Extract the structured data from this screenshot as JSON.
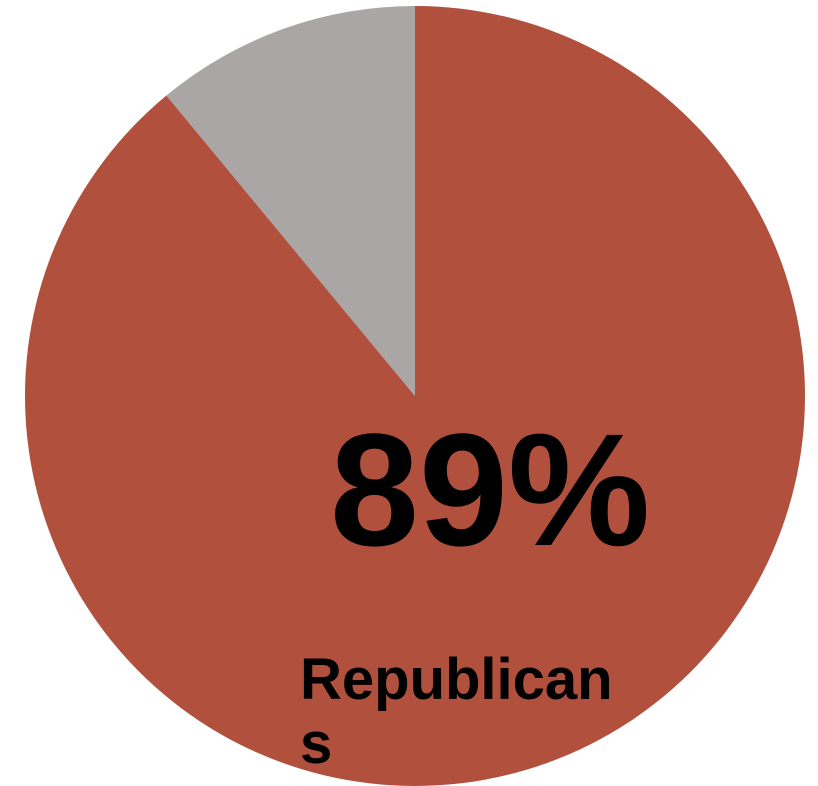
{
  "chart_data": {
    "type": "pie",
    "slices": [
      {
        "label": "Republicans",
        "value": 89,
        "color": "#b0503d"
      },
      {
        "label": "",
        "value": 11,
        "color": "#aaa6a5"
      }
    ],
    "data_label": "89%",
    "category_label_lines": [
      "Republican",
      "s"
    ]
  }
}
